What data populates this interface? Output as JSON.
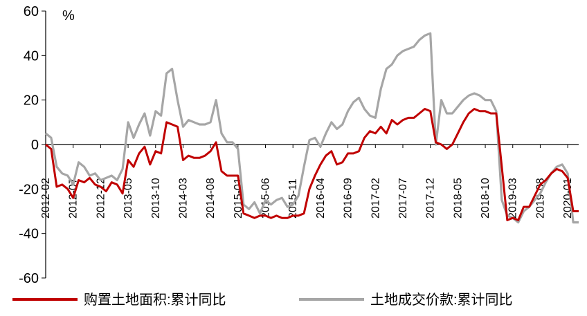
{
  "chart_data": {
    "type": "line",
    "y_unit": "%",
    "ylim": [
      -60,
      60
    ],
    "yticks": [
      60,
      40,
      20,
      0,
      -20,
      -40,
      -60
    ],
    "x_start": "2012-02",
    "x_end": "2020-03",
    "xtick_labels": [
      "2012-02",
      "2012-07",
      "2012-12",
      "2013-05",
      "2013-10",
      "2014-03",
      "2014-08",
      "2015-01",
      "2015-06",
      "2015-11",
      "2016-04",
      "2016-09",
      "2017-02",
      "2017-07",
      "2017-12",
      "2018-05",
      "2018-10",
      "2019-03",
      "2019-08",
      "2020-01"
    ],
    "grid": false,
    "legend_position": "bottom",
    "series": [
      {
        "name": "购置土地面积:累计同比",
        "color": "#C00000",
        "points": [
          [
            "2012-02",
            0
          ],
          [
            "2012-03",
            -2
          ],
          [
            "2012-04",
            -19
          ],
          [
            "2012-05",
            -18
          ],
          [
            "2012-06",
            -20
          ],
          [
            "2012-07",
            -24
          ],
          [
            "2012-08",
            -16
          ],
          [
            "2012-09",
            -17
          ],
          [
            "2012-10",
            -15
          ],
          [
            "2012-11",
            -18
          ],
          [
            "2012-12",
            -19
          ],
          [
            "2013-01",
            -21
          ],
          [
            "2013-02",
            -17
          ],
          [
            "2013-03",
            -18
          ],
          [
            "2013-04",
            -22
          ],
          [
            "2013-05",
            -7
          ],
          [
            "2013-06",
            -10
          ],
          [
            "2013-07",
            -4
          ],
          [
            "2013-08",
            -1
          ],
          [
            "2013-09",
            -9
          ],
          [
            "2013-10",
            -3
          ],
          [
            "2013-11",
            -4
          ],
          [
            "2013-12",
            10
          ],
          [
            "2014-01",
            9
          ],
          [
            "2014-02",
            8
          ],
          [
            "2014-03",
            -7
          ],
          [
            "2014-04",
            -5
          ],
          [
            "2014-05",
            -6
          ],
          [
            "2014-06",
            -6
          ],
          [
            "2014-07",
            -5
          ],
          [
            "2014-08",
            -3
          ],
          [
            "2014-09",
            1
          ],
          [
            "2014-10",
            -12
          ],
          [
            "2014-11",
            -14
          ],
          [
            "2014-12",
            -14
          ],
          [
            "2015-01",
            -14
          ],
          [
            "2015-02",
            -31
          ],
          [
            "2015-03",
            -32
          ],
          [
            "2015-04",
            -33
          ],
          [
            "2015-05",
            -32
          ],
          [
            "2015-06",
            -32
          ],
          [
            "2015-07",
            -33
          ],
          [
            "2015-08",
            -32
          ],
          [
            "2015-09",
            -33
          ],
          [
            "2015-10",
            -33
          ],
          [
            "2015-11",
            -32
          ],
          [
            "2015-12",
            -32
          ],
          [
            "2016-01",
            -31
          ],
          [
            "2016-02",
            -20
          ],
          [
            "2016-03",
            -14
          ],
          [
            "2016-04",
            -9
          ],
          [
            "2016-05",
            -5
          ],
          [
            "2016-06",
            -3
          ],
          [
            "2016-07",
            -9
          ],
          [
            "2016-08",
            -8
          ],
          [
            "2016-09",
            -4
          ],
          [
            "2016-10",
            -4
          ],
          [
            "2016-11",
            -3
          ],
          [
            "2016-12",
            3
          ],
          [
            "2017-01",
            6
          ],
          [
            "2017-02",
            5
          ],
          [
            "2017-03",
            8
          ],
          [
            "2017-04",
            5
          ],
          [
            "2017-05",
            11
          ],
          [
            "2017-06",
            9
          ],
          [
            "2017-07",
            11
          ],
          [
            "2017-08",
            12
          ],
          [
            "2017-09",
            12
          ],
          [
            "2017-10",
            14
          ],
          [
            "2017-11",
            16
          ],
          [
            "2017-12",
            15
          ],
          [
            "2018-01",
            1
          ],
          [
            "2018-02",
            0
          ],
          [
            "2018-03",
            -2
          ],
          [
            "2018-04",
            0
          ],
          [
            "2018-05",
            5
          ],
          [
            "2018-06",
            10
          ],
          [
            "2018-07",
            14
          ],
          [
            "2018-08",
            16
          ],
          [
            "2018-09",
            15
          ],
          [
            "2018-10",
            15
          ],
          [
            "2018-11",
            14
          ],
          [
            "2018-12",
            14
          ],
          [
            "2019-01",
            -10
          ],
          [
            "2019-02",
            -34
          ],
          [
            "2019-03",
            -33
          ],
          [
            "2019-04",
            -34
          ],
          [
            "2019-05",
            -28
          ],
          [
            "2019-06",
            -28
          ],
          [
            "2019-07",
            -23
          ],
          [
            "2019-08",
            -18
          ],
          [
            "2019-09",
            -16
          ],
          [
            "2019-10",
            -13
          ],
          [
            "2019-11",
            -11
          ],
          [
            "2019-12",
            -12
          ],
          [
            "2020-01",
            -15
          ],
          [
            "2020-02",
            -30
          ],
          [
            "2020-03",
            -30
          ]
        ]
      },
      {
        "name": "土地成交价款:累计同比",
        "color": "#A6A6A6",
        "points": [
          [
            "2012-02",
            5
          ],
          [
            "2012-03",
            3
          ],
          [
            "2012-04",
            -10
          ],
          [
            "2012-05",
            -13
          ],
          [
            "2012-06",
            -14
          ],
          [
            "2012-07",
            -18
          ],
          [
            "2012-08",
            -8
          ],
          [
            "2012-09",
            -10
          ],
          [
            "2012-10",
            -14
          ],
          [
            "2012-11",
            -13
          ],
          [
            "2012-12",
            -16
          ],
          [
            "2013-01",
            -15
          ],
          [
            "2013-02",
            -14
          ],
          [
            "2013-03",
            -16
          ],
          [
            "2013-04",
            -11
          ],
          [
            "2013-05",
            10
          ],
          [
            "2013-06",
            3
          ],
          [
            "2013-07",
            9
          ],
          [
            "2013-08",
            14
          ],
          [
            "2013-09",
            4
          ],
          [
            "2013-10",
            15
          ],
          [
            "2013-11",
            13
          ],
          [
            "2013-12",
            32
          ],
          [
            "2014-01",
            34
          ],
          [
            "2014-02",
            20
          ],
          [
            "2014-03",
            8
          ],
          [
            "2014-04",
            11
          ],
          [
            "2014-05",
            10
          ],
          [
            "2014-06",
            9
          ],
          [
            "2014-07",
            9
          ],
          [
            "2014-08",
            10
          ],
          [
            "2014-09",
            20
          ],
          [
            "2014-10",
            5
          ],
          [
            "2014-11",
            1
          ],
          [
            "2014-12",
            1
          ],
          [
            "2015-01",
            -2
          ],
          [
            "2015-02",
            -27
          ],
          [
            "2015-03",
            -29
          ],
          [
            "2015-04",
            -26
          ],
          [
            "2015-05",
            -31
          ],
          [
            "2015-06",
            -25
          ],
          [
            "2015-07",
            -27
          ],
          [
            "2015-08",
            -25
          ],
          [
            "2015-09",
            -24
          ],
          [
            "2015-10",
            -28
          ],
          [
            "2015-11",
            -27
          ],
          [
            "2015-12",
            -23
          ],
          [
            "2016-01",
            -10
          ],
          [
            "2016-02",
            2
          ],
          [
            "2016-03",
            3
          ],
          [
            "2016-04",
            -1
          ],
          [
            "2016-05",
            5
          ],
          [
            "2016-06",
            10
          ],
          [
            "2016-07",
            7
          ],
          [
            "2016-08",
            9
          ],
          [
            "2016-09",
            15
          ],
          [
            "2016-10",
            19
          ],
          [
            "2016-11",
            21
          ],
          [
            "2016-12",
            16
          ],
          [
            "2017-01",
            13
          ],
          [
            "2017-02",
            12
          ],
          [
            "2017-03",
            25
          ],
          [
            "2017-04",
            34
          ],
          [
            "2017-05",
            36
          ],
          [
            "2017-06",
            40
          ],
          [
            "2017-07",
            42
          ],
          [
            "2017-08",
            43
          ],
          [
            "2017-09",
            44
          ],
          [
            "2017-10",
            47
          ],
          [
            "2017-11",
            49
          ],
          [
            "2017-12",
            50
          ],
          [
            "2018-01",
            0
          ],
          [
            "2018-02",
            20
          ],
          [
            "2018-03",
            14
          ],
          [
            "2018-04",
            14
          ],
          [
            "2018-05",
            17
          ],
          [
            "2018-06",
            20
          ],
          [
            "2018-07",
            22
          ],
          [
            "2018-08",
            23
          ],
          [
            "2018-09",
            22
          ],
          [
            "2018-10",
            20
          ],
          [
            "2018-11",
            20
          ],
          [
            "2018-12",
            15
          ],
          [
            "2019-01",
            -25
          ],
          [
            "2019-02",
            -32
          ],
          [
            "2019-03",
            -33
          ],
          [
            "2019-04",
            -35
          ],
          [
            "2019-05",
            -30
          ],
          [
            "2019-06",
            -28
          ],
          [
            "2019-07",
            -25
          ],
          [
            "2019-08",
            -22
          ],
          [
            "2019-09",
            -17
          ],
          [
            "2019-10",
            -13
          ],
          [
            "2019-11",
            -10
          ],
          [
            "2019-12",
            -9
          ],
          [
            "2020-01",
            -13
          ],
          [
            "2020-02",
            -35
          ],
          [
            "2020-03",
            -35
          ]
        ]
      }
    ]
  }
}
